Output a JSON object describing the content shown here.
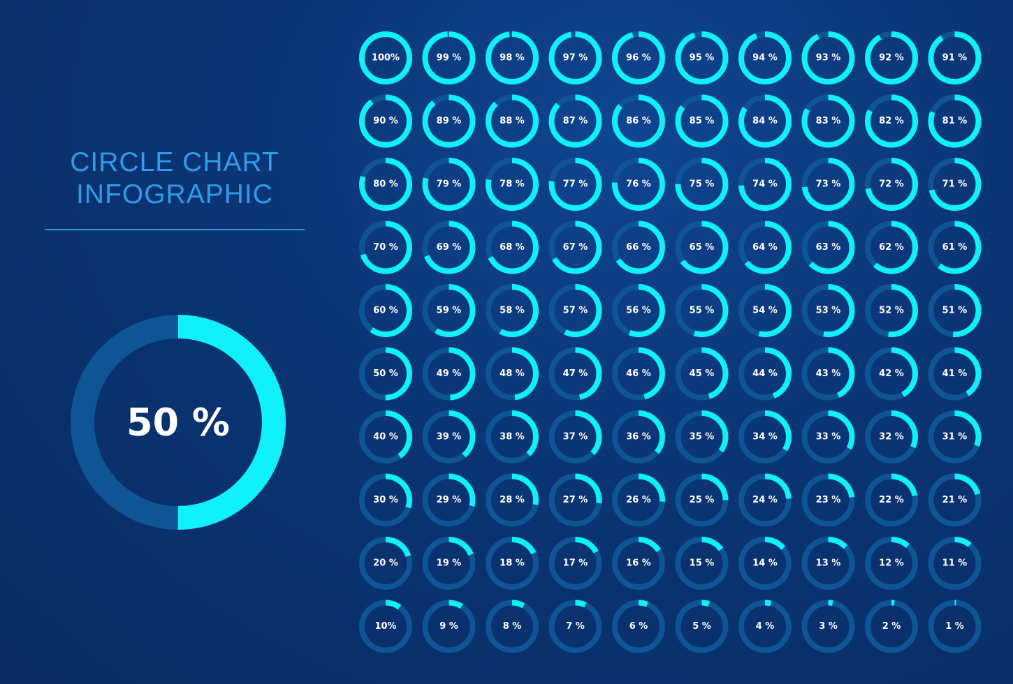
{
  "title": {
    "line1": "CIRCLE CHART",
    "line2": "INFOGRAPHIC"
  },
  "colors": {
    "arc": "#10f0f8",
    "track": "#0f5494",
    "title": "#2f9be9",
    "divider": "#2f8fdc",
    "label": "#ffffff"
  },
  "chart_data": [
    {
      "type": "pie",
      "variant": "donut",
      "value": 50,
      "label": "50 %"
    },
    {
      "type": "pie",
      "variant": "donut-grid",
      "rows": [
        [
          {
            "value": 100,
            "label": "100%"
          },
          {
            "value": 99,
            "label": "99 %"
          },
          {
            "value": 98,
            "label": "98 %"
          },
          {
            "value": 97,
            "label": "97 %"
          },
          {
            "value": 96,
            "label": "96 %"
          },
          {
            "value": 95,
            "label": "95 %"
          },
          {
            "value": 94,
            "label": "94 %"
          },
          {
            "value": 93,
            "label": "93 %"
          },
          {
            "value": 92,
            "label": "92 %"
          },
          {
            "value": 91,
            "label": "91 %"
          }
        ],
        [
          {
            "value": 90,
            "label": "90 %"
          },
          {
            "value": 89,
            "label": "89 %"
          },
          {
            "value": 88,
            "label": "88 %"
          },
          {
            "value": 87,
            "label": "87 %"
          },
          {
            "value": 86,
            "label": "86 %"
          },
          {
            "value": 85,
            "label": "85 %"
          },
          {
            "value": 84,
            "label": "84 %"
          },
          {
            "value": 83,
            "label": "83 %"
          },
          {
            "value": 82,
            "label": "82 %"
          },
          {
            "value": 81,
            "label": "81 %"
          }
        ],
        [
          {
            "value": 80,
            "label": "80 %"
          },
          {
            "value": 79,
            "label": "79 %"
          },
          {
            "value": 78,
            "label": "78 %"
          },
          {
            "value": 77,
            "label": "77 %"
          },
          {
            "value": 76,
            "label": "76 %"
          },
          {
            "value": 75,
            "label": "75 %"
          },
          {
            "value": 74,
            "label": "74 %"
          },
          {
            "value": 73,
            "label": "73 %"
          },
          {
            "value": 72,
            "label": "72 %"
          },
          {
            "value": 71,
            "label": "71 %"
          }
        ],
        [
          {
            "value": 70,
            "label": "70 %"
          },
          {
            "value": 69,
            "label": "69 %"
          },
          {
            "value": 68,
            "label": "68 %"
          },
          {
            "value": 67,
            "label": "67 %"
          },
          {
            "value": 66,
            "label": "66 %"
          },
          {
            "value": 65,
            "label": "65 %"
          },
          {
            "value": 64,
            "label": "64 %"
          },
          {
            "value": 63,
            "label": "63 %"
          },
          {
            "value": 62,
            "label": "62 %"
          },
          {
            "value": 61,
            "label": "61 %"
          }
        ],
        [
          {
            "value": 60,
            "label": "60 %"
          },
          {
            "value": 59,
            "label": "59 %"
          },
          {
            "value": 58,
            "label": "58 %"
          },
          {
            "value": 57,
            "label": "57 %"
          },
          {
            "value": 56,
            "label": "56 %"
          },
          {
            "value": 55,
            "label": "55 %"
          },
          {
            "value": 54,
            "label": "54 %"
          },
          {
            "value": 53,
            "label": "53 %"
          },
          {
            "value": 52,
            "label": "52 %"
          },
          {
            "value": 51,
            "label": "51 %"
          }
        ],
        [
          {
            "value": 50,
            "label": "50 %"
          },
          {
            "value": 49,
            "label": "49 %"
          },
          {
            "value": 48,
            "label": "48 %"
          },
          {
            "value": 47,
            "label": "47 %"
          },
          {
            "value": 46,
            "label": "46 %"
          },
          {
            "value": 45,
            "label": "45 %"
          },
          {
            "value": 44,
            "label": "44 %"
          },
          {
            "value": 43,
            "label": "43 %"
          },
          {
            "value": 42,
            "label": "42 %"
          },
          {
            "value": 41,
            "label": "41 %"
          }
        ],
        [
          {
            "value": 40,
            "label": "40 %"
          },
          {
            "value": 39,
            "label": "39 %"
          },
          {
            "value": 38,
            "label": "38 %"
          },
          {
            "value": 37,
            "label": "37 %"
          },
          {
            "value": 36,
            "label": "36 %"
          },
          {
            "value": 35,
            "label": "35 %"
          },
          {
            "value": 34,
            "label": "34 %"
          },
          {
            "value": 33,
            "label": "33 %"
          },
          {
            "value": 32,
            "label": "32 %"
          },
          {
            "value": 31,
            "label": "31 %"
          }
        ],
        [
          {
            "value": 30,
            "label": "30 %"
          },
          {
            "value": 29,
            "label": "29 %"
          },
          {
            "value": 28,
            "label": "28 %"
          },
          {
            "value": 27,
            "label": "27 %"
          },
          {
            "value": 26,
            "label": "26 %"
          },
          {
            "value": 25,
            "label": "25 %"
          },
          {
            "value": 24,
            "label": "24 %"
          },
          {
            "value": 23,
            "label": "23 %"
          },
          {
            "value": 22,
            "label": "22 %"
          },
          {
            "value": 21,
            "label": "21 %"
          }
        ],
        [
          {
            "value": 20,
            "label": "20 %"
          },
          {
            "value": 19,
            "label": "19 %"
          },
          {
            "value": 18,
            "label": "18 %"
          },
          {
            "value": 17,
            "label": "17 %"
          },
          {
            "value": 16,
            "label": "16 %"
          },
          {
            "value": 15,
            "label": "15 %"
          },
          {
            "value": 14,
            "label": "14 %"
          },
          {
            "value": 13,
            "label": "13 %"
          },
          {
            "value": 12,
            "label": "12 %"
          },
          {
            "value": 11,
            "label": "11 %"
          }
        ],
        [
          {
            "value": 10,
            "label": "10%"
          },
          {
            "value": 9,
            "label": "9 %"
          },
          {
            "value": 8,
            "label": "8 %"
          },
          {
            "value": 7,
            "label": "7 %"
          },
          {
            "value": 6,
            "label": "6 %"
          },
          {
            "value": 5,
            "label": "5 %"
          },
          {
            "value": 4,
            "label": "4 %"
          },
          {
            "value": 3,
            "label": "3 %"
          },
          {
            "value": 2,
            "label": "2 %"
          },
          {
            "value": 1,
            "label": "1 %"
          }
        ]
      ]
    }
  ]
}
